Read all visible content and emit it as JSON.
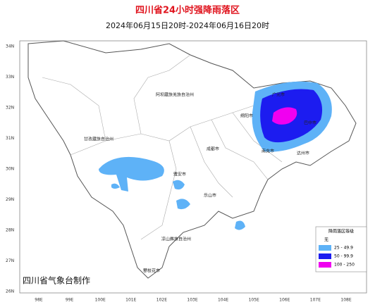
{
  "header": {
    "title": "四川省24小时强降雨落区",
    "subtitle": "2024年06月15日20时-2024年06月16日20时"
  },
  "map": {
    "lat_labels": [
      "34N",
      "33N",
      "32N",
      "31N",
      "30N",
      "29N",
      "28N",
      "27N",
      "26N"
    ],
    "lon_labels": [
      "98E",
      "99E",
      "100E",
      "101E",
      "102E",
      "103E",
      "104E",
      "105E",
      "106E",
      "107E",
      "108E"
    ],
    "place_labels": [
      "阿坝藏族羌族自治州",
      "甘孜藏族自治州",
      "凉山彝族自治州",
      "攀枝花市",
      "雅安市",
      "乐山市",
      "成都市",
      "绵阳市",
      "广元市",
      "巴中市",
      "达州市",
      "南充市"
    ]
  },
  "legend": {
    "title": "降雨落区等级",
    "none_label": "无",
    "items": [
      {
        "label": "25 - 49.9",
        "color": "#5eb2f7"
      },
      {
        "label": "50 - 99.9",
        "color": "#1c1cf0"
      },
      {
        "label": "100 - 250",
        "color": "#f000f0"
      }
    ]
  },
  "footer": {
    "credit": "四川省气象台制作"
  }
}
